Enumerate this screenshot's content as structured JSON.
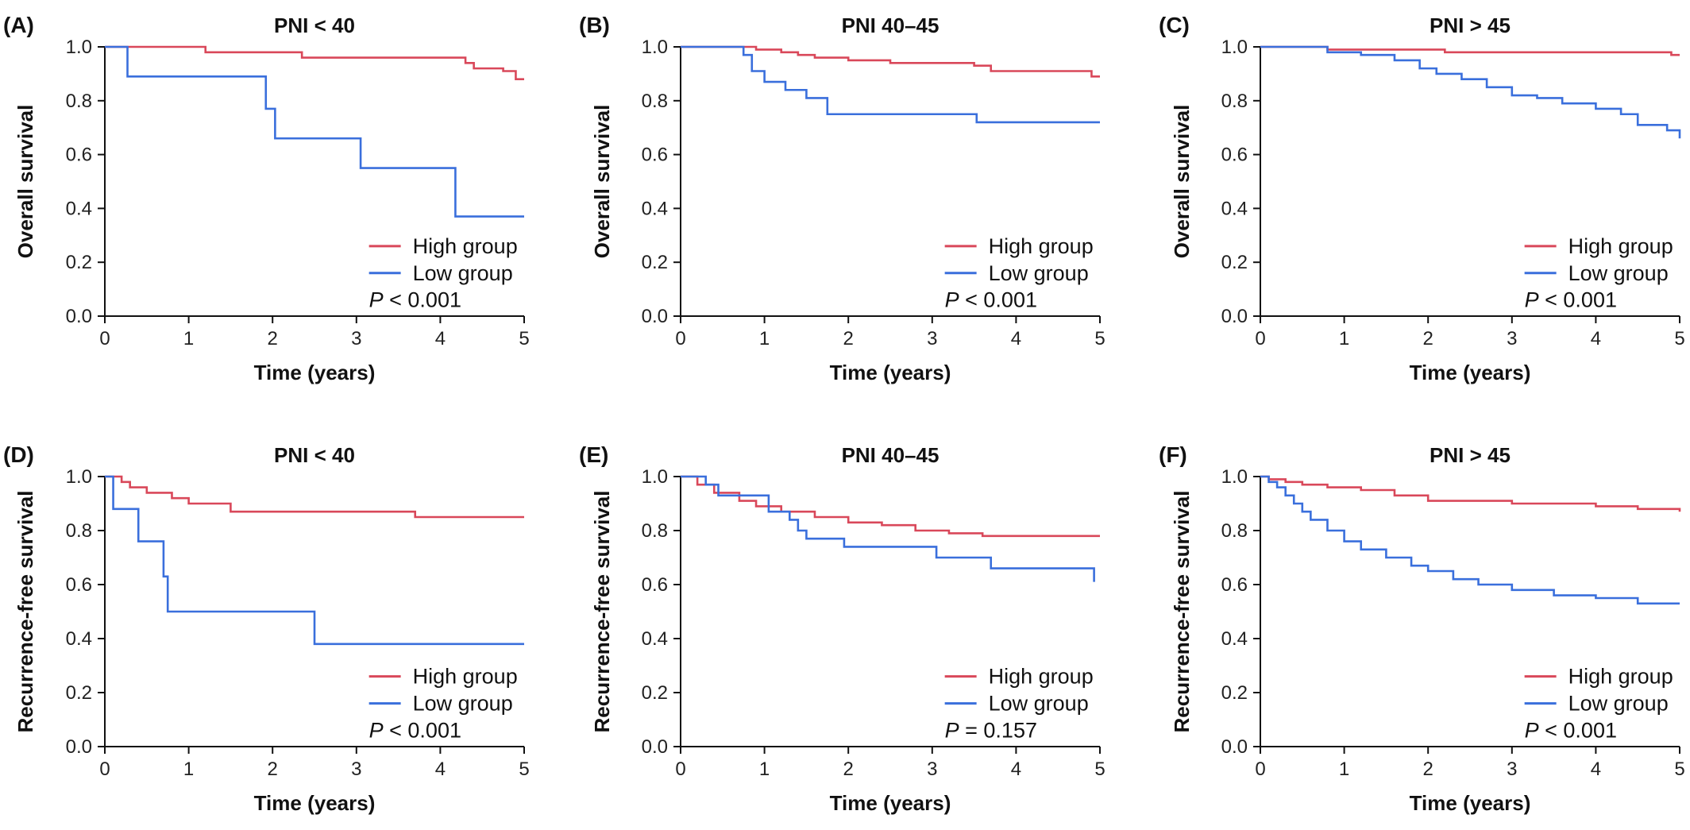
{
  "figure": {
    "colors": {
      "high": "#d9485a",
      "low": "#3a6fdc",
      "axis": "#111111"
    },
    "legend_labels": [
      "High group",
      "Low group"
    ]
  },
  "chart_data": [
    {
      "type": "line",
      "panel": "(A)",
      "title": "PNI < 40",
      "xlabel": "Time (years)",
      "ylabel": "Overall survival",
      "xlim": [
        0,
        5
      ],
      "ylim": [
        0,
        1
      ],
      "xticks": [
        "0",
        "1",
        "2",
        "3",
        "4",
        "5"
      ],
      "yticks": [
        "0.0",
        "0.2",
        "0.4",
        "0.6",
        "0.8",
        "1.0"
      ],
      "p_prefix": "P",
      "p_text": " < 0.001",
      "series": [
        {
          "name": "High group",
          "color": "#d9485a",
          "x": [
            0,
            1.2,
            2.35,
            4.3,
            4.4,
            4.75,
            4.9,
            5.0
          ],
          "y": [
            1.0,
            0.98,
            0.96,
            0.94,
            0.92,
            0.91,
            0.88,
            0.88
          ]
        },
        {
          "name": "Low group",
          "color": "#3a6fdc",
          "x": [
            0,
            0.27,
            1.92,
            2.03,
            3.05,
            4.18,
            5.0
          ],
          "y": [
            1.0,
            0.89,
            0.77,
            0.66,
            0.55,
            0.37,
            0.37
          ]
        }
      ]
    },
    {
      "type": "line",
      "panel": "(B)",
      "title": "PNI 40–45",
      "xlabel": "Time (years)",
      "ylabel": "Overall survival",
      "xlim": [
        0,
        5
      ],
      "ylim": [
        0,
        1
      ],
      "xticks": [
        "0",
        "1",
        "2",
        "3",
        "4",
        "5"
      ],
      "yticks": [
        "0.0",
        "0.2",
        "0.4",
        "0.6",
        "0.8",
        "1.0"
      ],
      "p_prefix": "P",
      "p_text": " < 0.001",
      "series": [
        {
          "name": "High group",
          "color": "#d9485a",
          "x": [
            0,
            0.9,
            1.2,
            1.4,
            1.6,
            2.0,
            2.5,
            3.0,
            3.5,
            3.7,
            4.0,
            4.9,
            5.0
          ],
          "y": [
            1.0,
            0.99,
            0.98,
            0.97,
            0.96,
            0.95,
            0.94,
            0.94,
            0.93,
            0.91,
            0.91,
            0.89,
            0.89
          ]
        },
        {
          "name": "Low group",
          "color": "#3a6fdc",
          "x": [
            0,
            0.75,
            0.85,
            1.0,
            1.25,
            1.5,
            1.75,
            3.53,
            5.0
          ],
          "y": [
            1.0,
            0.97,
            0.91,
            0.87,
            0.84,
            0.81,
            0.75,
            0.72,
            0.72
          ]
        }
      ]
    },
    {
      "type": "line",
      "panel": "(C)",
      "title": "PNI > 45",
      "xlabel": "Time (years)",
      "ylabel": "Overall survival",
      "xlim": [
        0,
        5
      ],
      "ylim": [
        0,
        1
      ],
      "xticks": [
        "0",
        "1",
        "2",
        "3",
        "4",
        "5"
      ],
      "yticks": [
        "0.0",
        "0.2",
        "0.4",
        "0.6",
        "0.8",
        "1.0"
      ],
      "p_prefix": "P",
      "p_text": " < 0.001",
      "series": [
        {
          "name": "High group",
          "color": "#d9485a",
          "x": [
            0,
            0.8,
            1.5,
            2.2,
            4.9,
            5.0
          ],
          "y": [
            1.0,
            0.99,
            0.99,
            0.98,
            0.97,
            0.97
          ]
        },
        {
          "name": "Low group",
          "color": "#3a6fdc",
          "x": [
            0,
            0.8,
            1.2,
            1.6,
            1.9,
            2.1,
            2.4,
            2.7,
            3.0,
            3.3,
            3.6,
            4.0,
            4.3,
            4.5,
            4.7,
            4.85,
            5.0
          ],
          "y": [
            1.0,
            0.98,
            0.97,
            0.95,
            0.92,
            0.9,
            0.88,
            0.85,
            0.82,
            0.81,
            0.79,
            0.77,
            0.75,
            0.71,
            0.71,
            0.69,
            0.66
          ]
        }
      ]
    },
    {
      "type": "line",
      "panel": "(D)",
      "title": "PNI < 40",
      "xlabel": "Time (years)",
      "ylabel": "Recurrence-free survival",
      "xlim": [
        0,
        5
      ],
      "ylim": [
        0,
        1
      ],
      "xticks": [
        "0",
        "1",
        "2",
        "3",
        "4",
        "5"
      ],
      "yticks": [
        "0.0",
        "0.2",
        "0.4",
        "0.6",
        "0.8",
        "1.0"
      ],
      "p_prefix": "P",
      "p_text": " < 0.001",
      "series": [
        {
          "name": "High group",
          "color": "#d9485a",
          "x": [
            0,
            0.2,
            0.3,
            0.5,
            0.8,
            1.0,
            1.5,
            3.7,
            5.0
          ],
          "y": [
            1.0,
            0.98,
            0.96,
            0.94,
            0.92,
            0.9,
            0.87,
            0.85,
            0.85
          ]
        },
        {
          "name": "Low group",
          "color": "#3a6fdc",
          "x": [
            0,
            0.1,
            0.4,
            0.7,
            0.75,
            2.5,
            5.0
          ],
          "y": [
            1.0,
            0.88,
            0.76,
            0.63,
            0.5,
            0.38,
            0.38
          ]
        }
      ]
    },
    {
      "type": "line",
      "panel": "(E)",
      "title": "PNI 40–45",
      "xlabel": "Time (years)",
      "ylabel": "Recurrence-free survival",
      "xlim": [
        0,
        5
      ],
      "ylim": [
        0,
        1
      ],
      "xticks": [
        "0",
        "1",
        "2",
        "3",
        "4",
        "5"
      ],
      "yticks": [
        "0.0",
        "0.2",
        "0.4",
        "0.6",
        "0.8",
        "1.0"
      ],
      "p_prefix": "P",
      "p_text": " = 0.157",
      "series": [
        {
          "name": "High group",
          "color": "#d9485a",
          "x": [
            0,
            0.2,
            0.4,
            0.7,
            0.9,
            1.2,
            1.6,
            2.0,
            2.4,
            2.8,
            3.2,
            3.6,
            5.0
          ],
          "y": [
            1.0,
            0.97,
            0.94,
            0.91,
            0.89,
            0.87,
            0.85,
            0.83,
            0.82,
            0.8,
            0.79,
            0.78,
            0.78
          ]
        },
        {
          "name": "Low group",
          "color": "#3a6fdc",
          "x": [
            0,
            0.3,
            0.45,
            1.0,
            1.05,
            1.3,
            1.4,
            1.5,
            1.95,
            3.05,
            3.7,
            4.9,
            4.93
          ],
          "y": [
            1.0,
            0.97,
            0.93,
            0.93,
            0.87,
            0.84,
            0.8,
            0.77,
            0.74,
            0.7,
            0.66,
            0.66,
            0.61
          ]
        }
      ]
    },
    {
      "type": "line",
      "panel": "(F)",
      "title": "PNI > 45",
      "xlabel": "Time (years)",
      "ylabel": "Recurrence-free survival",
      "xlim": [
        0,
        5
      ],
      "ylim": [
        0,
        1
      ],
      "xticks": [
        "0",
        "1",
        "2",
        "3",
        "4",
        "5"
      ],
      "yticks": [
        "0.0",
        "0.2",
        "0.4",
        "0.6",
        "0.8",
        "1.0"
      ],
      "p_prefix": "P",
      "p_text": " < 0.001",
      "series": [
        {
          "name": "High group",
          "color": "#d9485a",
          "x": [
            0,
            0.1,
            0.3,
            0.5,
            0.8,
            1.2,
            1.6,
            2.0,
            2.5,
            3.0,
            3.5,
            4.0,
            4.5,
            5.0
          ],
          "y": [
            1.0,
            0.99,
            0.98,
            0.97,
            0.96,
            0.95,
            0.93,
            0.91,
            0.91,
            0.9,
            0.9,
            0.89,
            0.88,
            0.87
          ]
        },
        {
          "name": "Low group",
          "color": "#3a6fdc",
          "x": [
            0,
            0.1,
            0.2,
            0.3,
            0.4,
            0.5,
            0.6,
            0.8,
            1.0,
            1.2,
            1.5,
            1.8,
            2.0,
            2.3,
            2.6,
            3.0,
            3.5,
            4.0,
            4.5,
            5.0
          ],
          "y": [
            1.0,
            0.98,
            0.96,
            0.93,
            0.9,
            0.87,
            0.84,
            0.8,
            0.76,
            0.73,
            0.7,
            0.67,
            0.65,
            0.62,
            0.6,
            0.58,
            0.56,
            0.55,
            0.53,
            0.53
          ]
        }
      ]
    }
  ]
}
